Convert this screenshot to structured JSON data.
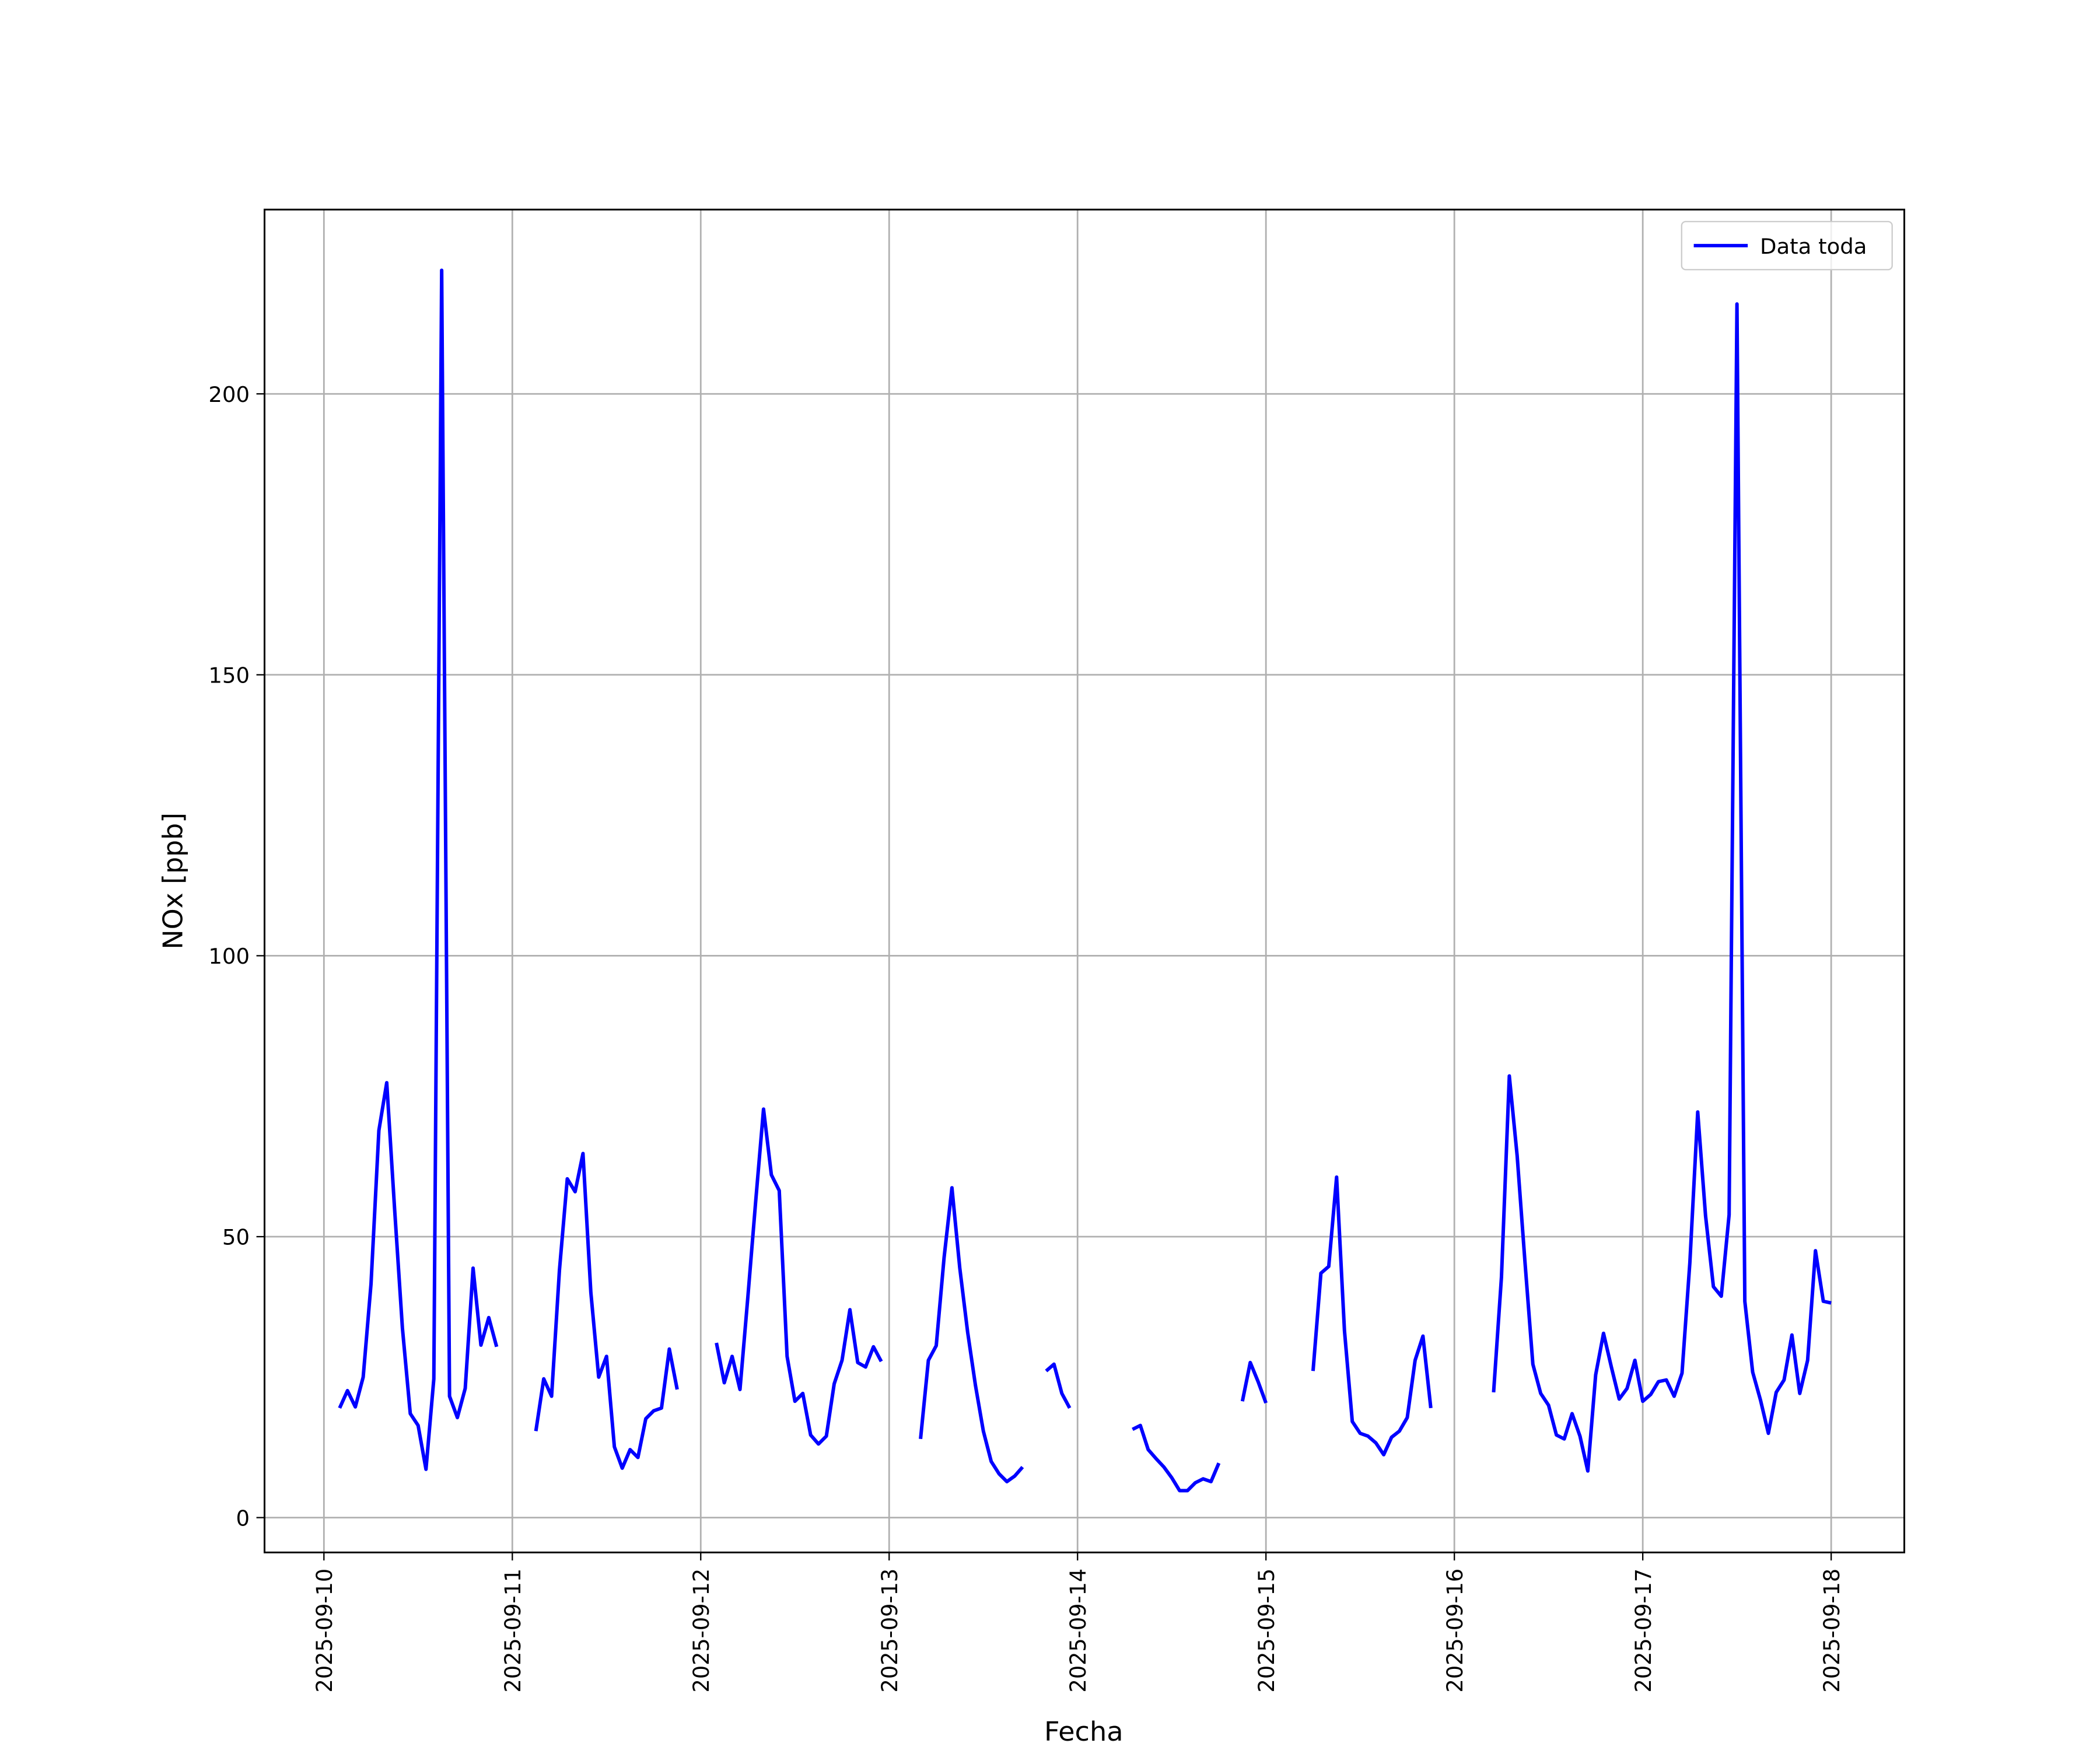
{
  "chart_data": {
    "type": "line",
    "xlabel": "Fecha",
    "ylabel": "NOx [ppb]",
    "x": [
      "2025-09-10 02:00",
      "2025-09-10 03:00",
      "2025-09-10 04:00",
      "2025-09-10 05:00",
      "2025-09-10 06:00",
      "2025-09-10 07:00",
      "2025-09-10 08:00",
      "2025-09-10 09:00",
      "2025-09-10 10:00",
      "2025-09-10 11:00",
      "2025-09-10 12:00",
      "2025-09-10 13:00",
      "2025-09-10 14:00",
      "2025-09-10 15:00",
      "2025-09-10 16:00",
      "2025-09-10 17:00",
      "2025-09-10 18:00",
      "2025-09-10 19:00",
      "2025-09-10 20:00",
      "2025-09-10 21:00",
      "2025-09-10 22:00",
      "2025-09-10 23:00",
      "2025-09-11 03:00",
      "2025-09-11 04:00",
      "2025-09-11 05:00",
      "2025-09-11 06:00",
      "2025-09-11 07:00",
      "2025-09-11 08:00",
      "2025-09-11 09:00",
      "2025-09-11 10:00",
      "2025-09-11 11:00",
      "2025-09-11 12:00",
      "2025-09-11 13:00",
      "2025-09-11 14:00",
      "2025-09-11 15:00",
      "2025-09-11 16:00",
      "2025-09-11 17:00",
      "2025-09-11 18:00",
      "2025-09-11 19:00",
      "2025-09-11 20:00",
      "2025-09-11 21:00",
      "2025-09-11 22:00",
      "2025-09-12 02:00",
      "2025-09-12 03:00",
      "2025-09-12 04:00",
      "2025-09-12 05:00",
      "2025-09-12 06:00",
      "2025-09-12 07:00",
      "2025-09-12 08:00",
      "2025-09-12 09:00",
      "2025-09-12 10:00",
      "2025-09-12 11:00",
      "2025-09-12 12:00",
      "2025-09-12 13:00",
      "2025-09-12 14:00",
      "2025-09-12 15:00",
      "2025-09-12 16:00",
      "2025-09-12 17:00",
      "2025-09-12 18:00",
      "2025-09-12 19:00",
      "2025-09-12 20:00",
      "2025-09-12 21:00",
      "2025-09-12 22:00",
      "2025-09-12 23:00",
      "2025-09-13 00:00",
      "2025-09-13 04:00",
      "2025-09-13 05:00",
      "2025-09-13 06:00",
      "2025-09-13 07:00",
      "2025-09-13 08:00",
      "2025-09-13 09:00",
      "2025-09-13 10:00",
      "2025-09-13 11:00",
      "2025-09-13 12:00",
      "2025-09-13 13:00",
      "2025-09-13 14:00",
      "2025-09-13 15:00",
      "2025-09-13 16:00",
      "2025-09-13 17:00",
      "2025-09-13 18:00",
      "2025-09-13 20:00",
      "2025-09-13 21:00",
      "2025-09-13 22:00",
      "2025-09-13 23:00",
      "2025-09-14 00:00",
      "2025-09-14 07:00",
      "2025-09-14 08:00",
      "2025-09-14 09:00",
      "2025-09-14 10:00",
      "2025-09-14 11:00",
      "2025-09-14 12:00",
      "2025-09-14 13:00",
      "2025-09-14 14:00",
      "2025-09-14 15:00",
      "2025-09-14 16:00",
      "2025-09-14 17:00",
      "2025-09-14 18:00",
      "2025-09-14 19:00",
      "2025-09-14 21:00",
      "2025-09-14 22:00",
      "2025-09-14 23:00",
      "2025-09-15 00:00",
      "2025-09-15 01:00",
      "2025-09-15 06:00",
      "2025-09-15 07:00",
      "2025-09-15 08:00",
      "2025-09-15 09:00",
      "2025-09-15 10:00",
      "2025-09-15 11:00",
      "2025-09-15 12:00",
      "2025-09-15 13:00",
      "2025-09-15 14:00",
      "2025-09-15 15:00",
      "2025-09-15 16:00",
      "2025-09-15 17:00",
      "2025-09-15 18:00",
      "2025-09-15 19:00",
      "2025-09-15 20:00",
      "2025-09-15 21:00",
      "2025-09-15 22:00",
      "2025-09-16 05:00",
      "2025-09-16 06:00",
      "2025-09-16 07:00",
      "2025-09-16 08:00",
      "2025-09-16 09:00",
      "2025-09-16 10:00",
      "2025-09-16 11:00",
      "2025-09-16 12:00",
      "2025-09-16 13:00",
      "2025-09-16 14:00",
      "2025-09-16 15:00",
      "2025-09-16 16:00",
      "2025-09-16 17:00",
      "2025-09-16 18:00",
      "2025-09-16 19:00",
      "2025-09-16 20:00",
      "2025-09-16 21:00",
      "2025-09-16 22:00",
      "2025-09-16 23:00",
      "2025-09-17 00:00",
      "2025-09-17 01:00",
      "2025-09-17 02:00",
      "2025-09-17 03:00",
      "2025-09-17 04:00",
      "2025-09-17 05:00",
      "2025-09-17 06:00",
      "2025-09-17 07:00",
      "2025-09-17 08:00",
      "2025-09-17 09:00",
      "2025-09-17 10:00",
      "2025-09-17 11:00",
      "2025-09-17 12:00",
      "2025-09-17 13:00",
      "2025-09-17 14:00",
      "2025-09-17 15:00",
      "2025-09-17 16:00",
      "2025-09-17 17:00",
      "2025-09-17 18:00",
      "2025-09-17 19:00",
      "2025-09-17 20:00",
      "2025-09-17 21:00",
      "2025-09-17 22:00",
      "2025-09-17 23:00",
      "2025-09-18 00:00"
    ],
    "series": [
      {
        "name": "Data toda",
        "color": "#0000ff",
        "values": [
          19.5,
          22.6,
          19.7,
          25,
          41.6,
          68.9,
          77.4,
          55,
          33.7,
          18.5,
          16.4,
          8.6,
          24.7,
          222,
          21.6,
          17.8,
          23,
          44.4,
          30.7,
          35.6,
          30.4,
          null,
          15.4,
          24.7,
          21.6,
          44,
          60.3,
          58,
          64.8,
          40.1,
          25,
          28.7,
          12.6,
          8.8,
          12.1,
          10.7,
          17.6,
          19,
          19.5,
          30,
          22.8,
          null,
          31.1,
          24,
          28.7,
          22.8,
          39.2,
          56.3,
          72.7,
          61,
          58.2,
          28.7,
          20.7,
          22.1,
          14.7,
          13.1,
          14.5,
          23.8,
          28,
          37,
          27.6,
          26.8,
          30.4,
          27.8,
          null,
          14,
          28,
          30.6,
          46.3,
          58.7,
          44.4,
          33,
          23.5,
          15.4,
          10,
          7.8,
          6.4,
          7.4,
          9,
          null,
          26.1,
          27.3,
          22.1,
          19.5,
          null,
          15.7,
          16.4,
          12.1,
          10.5,
          9,
          7.1,
          4.8,
          4.8,
          6.2,
          6.9,
          6.4,
          9.7,
          null,
          20.7,
          27.6,
          24.2,
          20.4,
          null,
          26.1,
          43.5,
          44.7,
          60.6,
          33.3,
          17.1,
          15,
          14.5,
          13.3,
          11.2,
          14.3,
          15.4,
          17.8,
          28,
          32.3,
          19.5,
          null,
          22.3,
          42.8,
          78.6,
          64.4,
          45.4,
          27.3,
          22.1,
          20,
          14.7,
          14,
          18.5,
          14.5,
          8.3,
          25.4,
          32.8,
          26.8,
          21.1,
          23,
          28,
          20.7,
          21.9,
          24.2,
          24.5,
          21.6,
          25.7,
          45.4,
          72.2,
          53.7,
          41.1,
          39.4,
          53.9,
          216,
          38.5,
          25.9,
          20.9,
          15,
          22.3,
          24.5,
          32.5,
          22.1,
          28,
          47.5,
          38.5,
          38.2
        ]
      }
    ],
    "xlim": [
      "2025-09-09 16:26",
      "2025-09-18 09:19"
    ],
    "xticks": [
      "2025-09-10",
      "2025-09-11",
      "2025-09-12",
      "2025-09-13",
      "2025-09-14",
      "2025-09-15",
      "2025-09-16",
      "2025-09-17",
      "2025-09-18"
    ],
    "ylim": [
      -6.2,
      232.8
    ],
    "yticks": [
      0,
      50,
      100,
      150,
      200
    ],
    "grid": true,
    "legend": "upper right"
  }
}
